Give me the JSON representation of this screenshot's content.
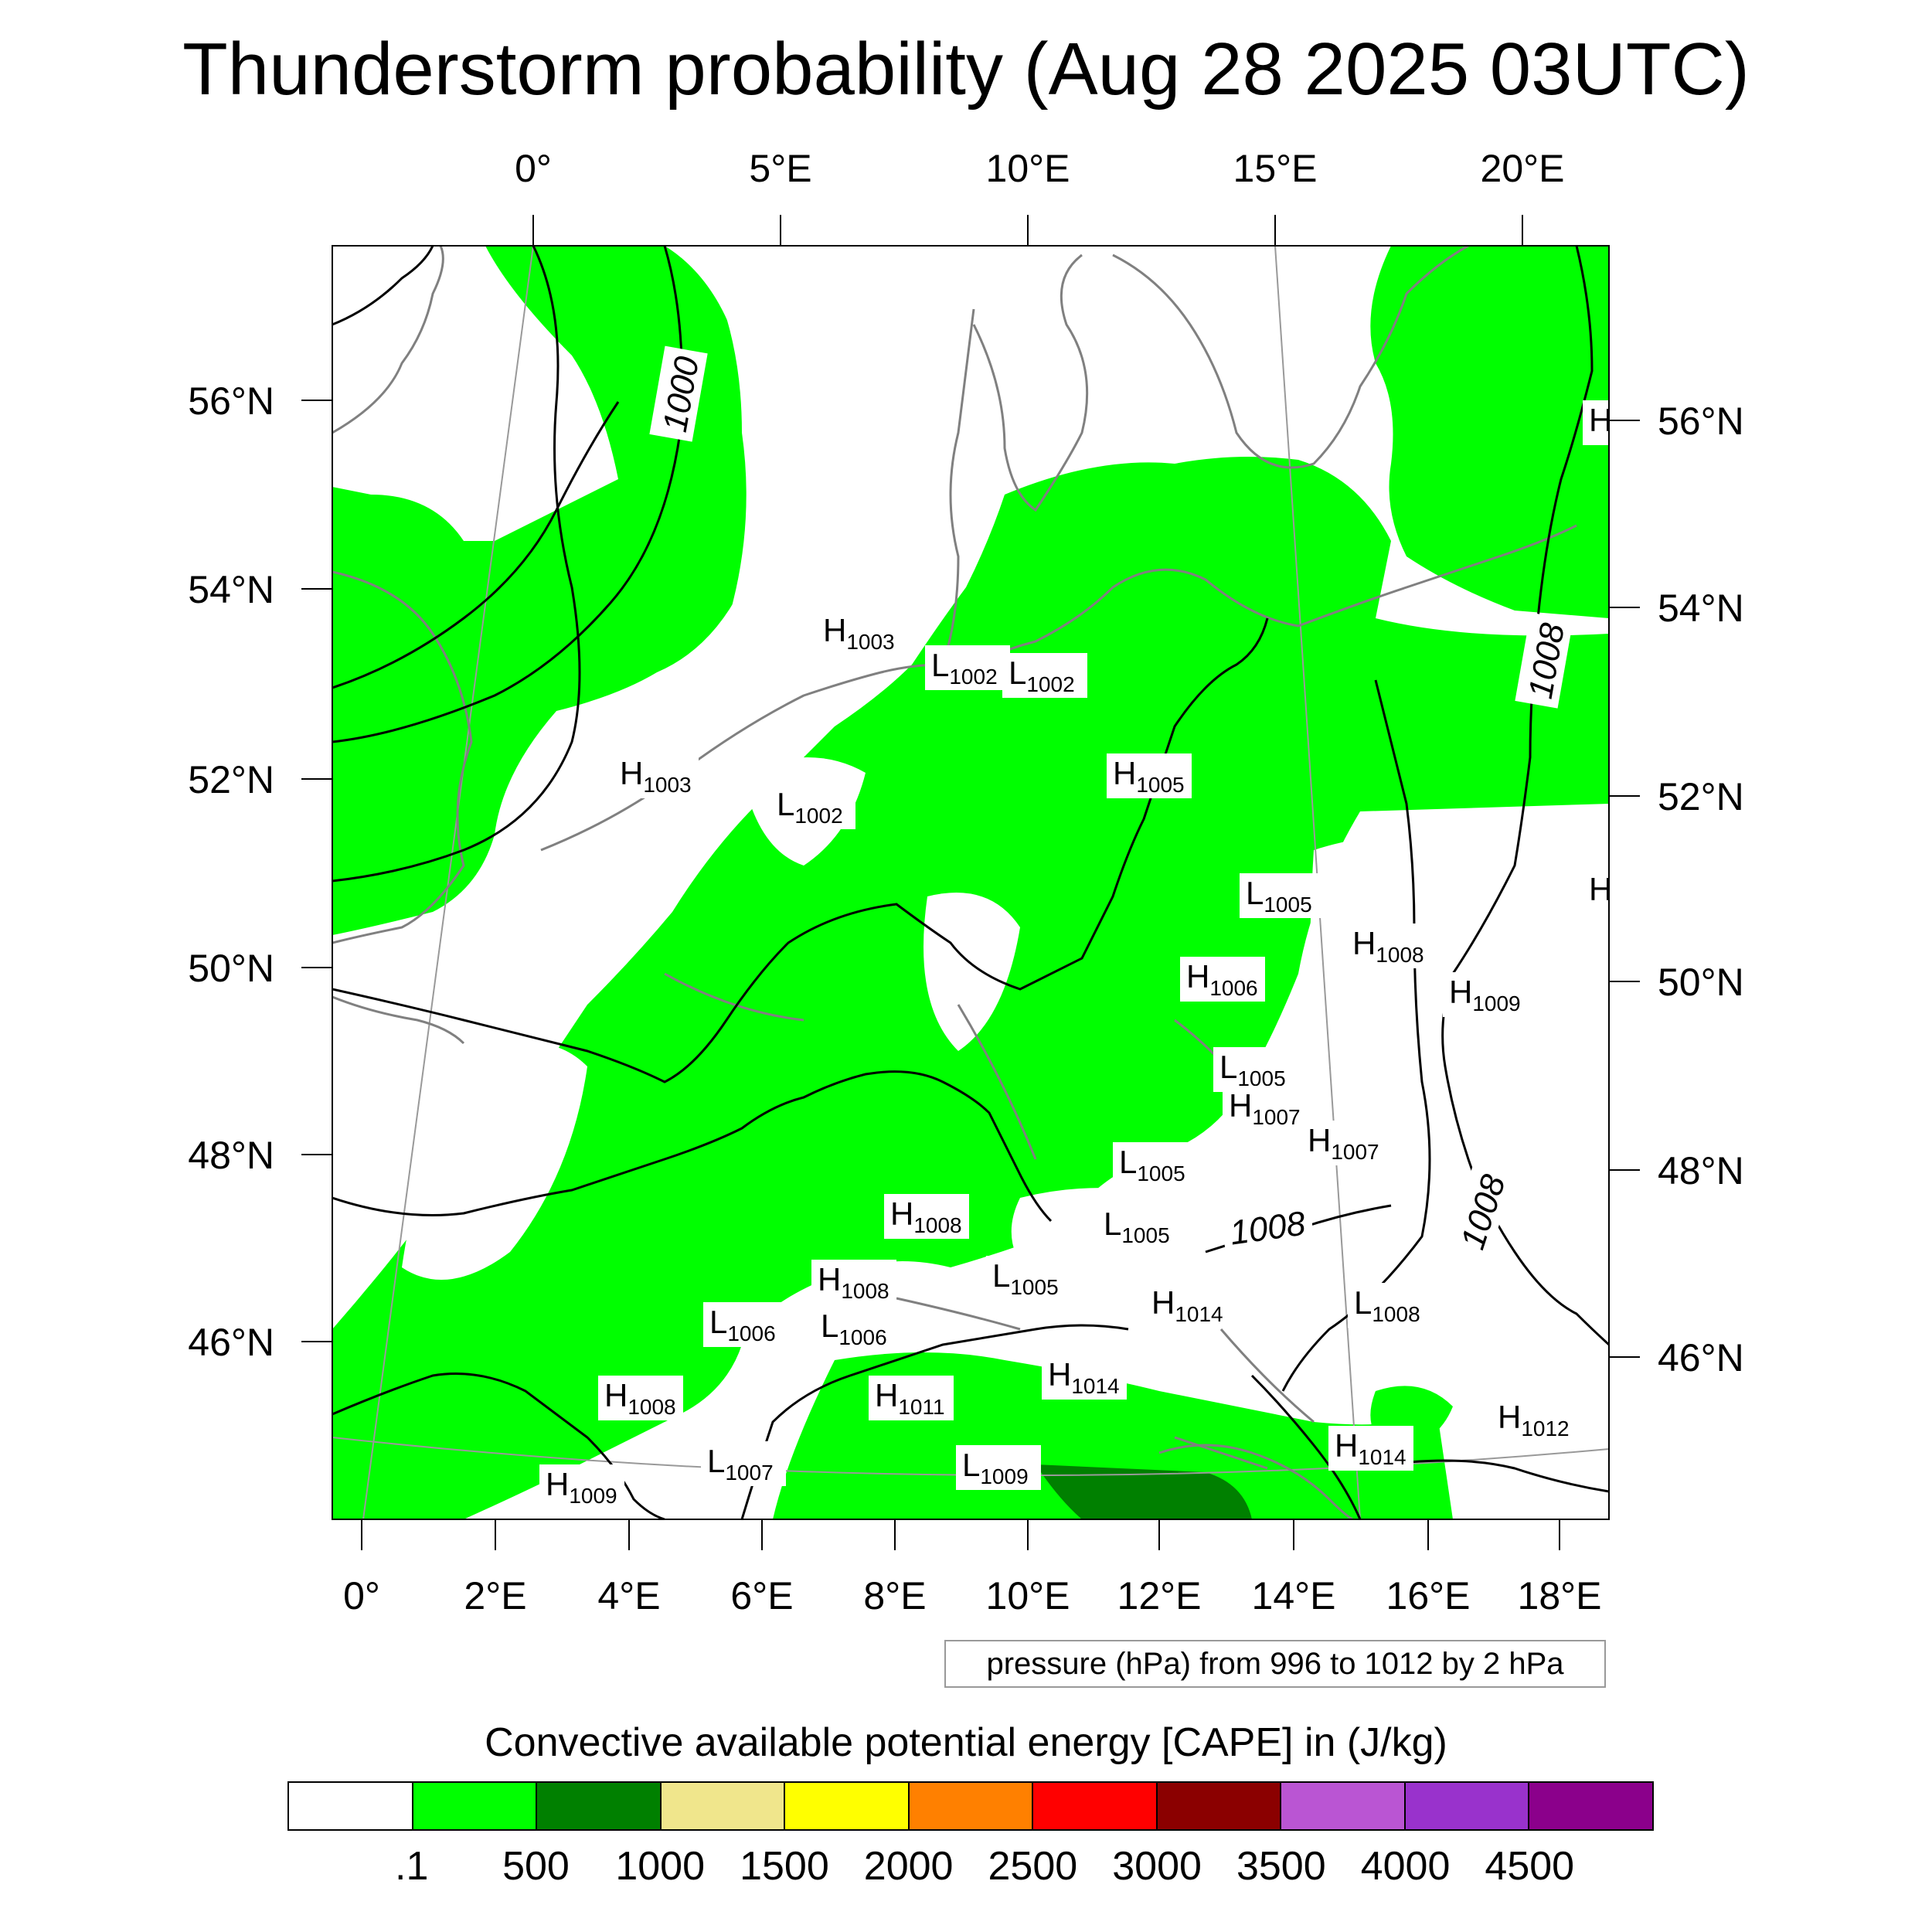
{
  "title": "Thunderstorm probability (Aug 28 2025 03UTC)",
  "top_axis_labels": [
    "0°",
    "5°E",
    "10°E",
    "15°E",
    "20°E"
  ],
  "bottom_axis_labels": [
    "0°",
    "2°E",
    "4°E",
    "6°E",
    "8°E",
    "10°E",
    "12°E",
    "14°E",
    "16°E",
    "18°E"
  ],
  "left_axis_labels": [
    "56°N",
    "54°N",
    "52°N",
    "50°N",
    "48°N",
    "46°N"
  ],
  "right_axis_labels": [
    "56°N",
    "54°N",
    "52°N",
    "50°N",
    "48°N",
    "46°N"
  ],
  "contour_labels": [
    "1000",
    "1008",
    "1008",
    "1008"
  ],
  "pressure_systems": [
    {
      "kind": "H",
      "value": "1003"
    },
    {
      "kind": "L",
      "value": "1002"
    },
    {
      "kind": "L",
      "value": "1002"
    },
    {
      "kind": "H",
      "value": "1003"
    },
    {
      "kind": "L",
      "value": "1002"
    },
    {
      "kind": "H",
      "value": "1005"
    },
    {
      "kind": "L",
      "value": "1005"
    },
    {
      "kind": "H",
      "value": "1008"
    },
    {
      "kind": "H",
      "value": "1009"
    },
    {
      "kind": "H",
      "value": "1006"
    },
    {
      "kind": "L",
      "value": "1005"
    },
    {
      "kind": "H",
      "value": "1007"
    },
    {
      "kind": "H",
      "value": "1007"
    },
    {
      "kind": "L",
      "value": "1005"
    },
    {
      "kind": "H",
      "value": "1008"
    },
    {
      "kind": "L",
      "value": "1005"
    },
    {
      "kind": "H",
      "value": "1008"
    },
    {
      "kind": "L",
      "value": "1005"
    },
    {
      "kind": "L",
      "value": "1006"
    },
    {
      "kind": "L",
      "value": "1006"
    },
    {
      "kind": "H",
      "value": "1014"
    },
    {
      "kind": "L",
      "value": "1008"
    },
    {
      "kind": "H",
      "value": "1008"
    },
    {
      "kind": "H",
      "value": "1011"
    },
    {
      "kind": "H",
      "value": "1014"
    },
    {
      "kind": "L",
      "value": "1007"
    },
    {
      "kind": "L",
      "value": "1009"
    },
    {
      "kind": "H",
      "value": "1009"
    },
    {
      "kind": "H",
      "value": "1014"
    },
    {
      "kind": "H",
      "value": "1012"
    },
    {
      "kind": "H",
      "value": ""
    },
    {
      "kind": "H",
      "value": ""
    }
  ],
  "pressure_note": "pressure (hPa) from 996 to 1012 by 2 hPa",
  "colorbar": {
    "title": "Convective available potential energy [CAPE] in (J/kg)",
    "colors": [
      "#ffffff",
      "#00ff00",
      "#008000",
      "#f0e68c",
      "#ffff00",
      "#ff8000",
      "#ff0000",
      "#8b0000",
      "#ba55d3",
      "#9932cc",
      "#8b008b"
    ],
    "labels": [
      ".1",
      "500",
      "1000",
      "1500",
      "2000",
      "2500",
      "3000",
      "3500",
      "4000",
      "4500"
    ]
  },
  "colors": {
    "cape_low": "#00ff00",
    "cape_mid": "#008000",
    "coast": "#808080",
    "isobar": "#000000"
  }
}
